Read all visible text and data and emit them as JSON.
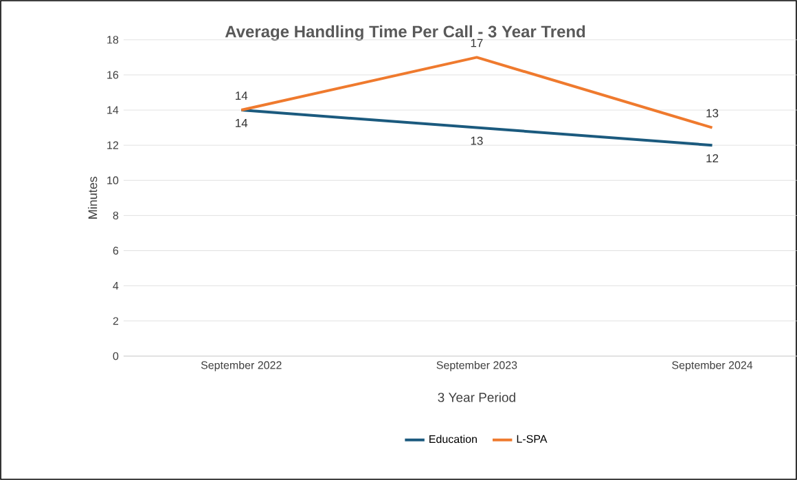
{
  "chart_data": {
    "type": "line",
    "title": "Average Handling Time Per Call - 3 Year Trend",
    "xlabel": "3 Year Period",
    "ylabel": "Minutes",
    "categories": [
      "September 2022",
      "September 2023",
      "September 2024"
    ],
    "series": [
      {
        "name": "Education",
        "color": "#1b5a7e",
        "values": [
          14,
          13,
          12
        ]
      },
      {
        "name": "L-SPA",
        "color": "#ef7a2e",
        "values": [
          14,
          17,
          13
        ]
      }
    ],
    "ylim": [
      0,
      18
    ],
    "yticks": [
      0,
      2,
      4,
      6,
      8,
      10,
      12,
      14,
      16,
      18
    ],
    "grid": "y",
    "legend": "bottom",
    "data_labels": true,
    "marker": "none",
    "line_style": "solid"
  }
}
